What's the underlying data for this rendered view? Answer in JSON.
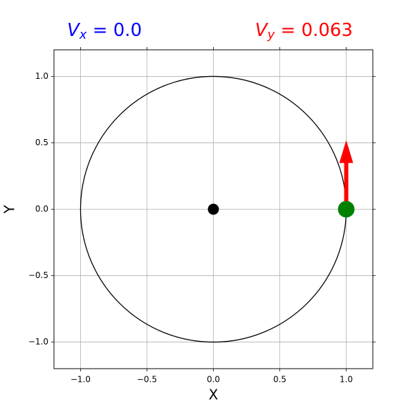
{
  "chart_data": {
    "type": "scatter",
    "annotations": [
      {
        "symbol": "V",
        "subscript": "x",
        "text": " = 0.0",
        "color": "blue"
      },
      {
        "symbol": "V",
        "subscript": "y",
        "text": " = 0.063",
        "color": "red"
      }
    ],
    "xlabel": "X",
    "ylabel": "Y",
    "xlim": [
      -1.2,
      1.2
    ],
    "ylim": [
      -1.2,
      1.2
    ],
    "xticks": [
      {
        "value": -1.0,
        "label": "−1.0"
      },
      {
        "value": -0.5,
        "label": "−0.5"
      },
      {
        "value": 0.0,
        "label": "0.0"
      },
      {
        "value": 0.5,
        "label": "0.5"
      },
      {
        "value": 1.0,
        "label": "1.0"
      }
    ],
    "yticks": [
      {
        "value": -1.0,
        "label": "−1.0"
      },
      {
        "value": -0.5,
        "label": "−0.5"
      },
      {
        "value": 0.0,
        "label": "0.0"
      },
      {
        "value": 0.5,
        "label": "0.5"
      },
      {
        "value": 1.0,
        "label": "1.0"
      }
    ],
    "grid": true,
    "circle": {
      "x": 0,
      "y": 0,
      "r": 1,
      "color": "black"
    },
    "series": [
      {
        "color": "black",
        "size": 8,
        "x": [
          0
        ],
        "y": [
          0
        ]
      },
      {
        "color": "green",
        "size": 12,
        "x": [
          1
        ],
        "y": [
          0
        ]
      }
    ],
    "arrow": {
      "x": 1,
      "y": 0,
      "dx": 0,
      "dy": 0.52,
      "color": "red"
    }
  }
}
